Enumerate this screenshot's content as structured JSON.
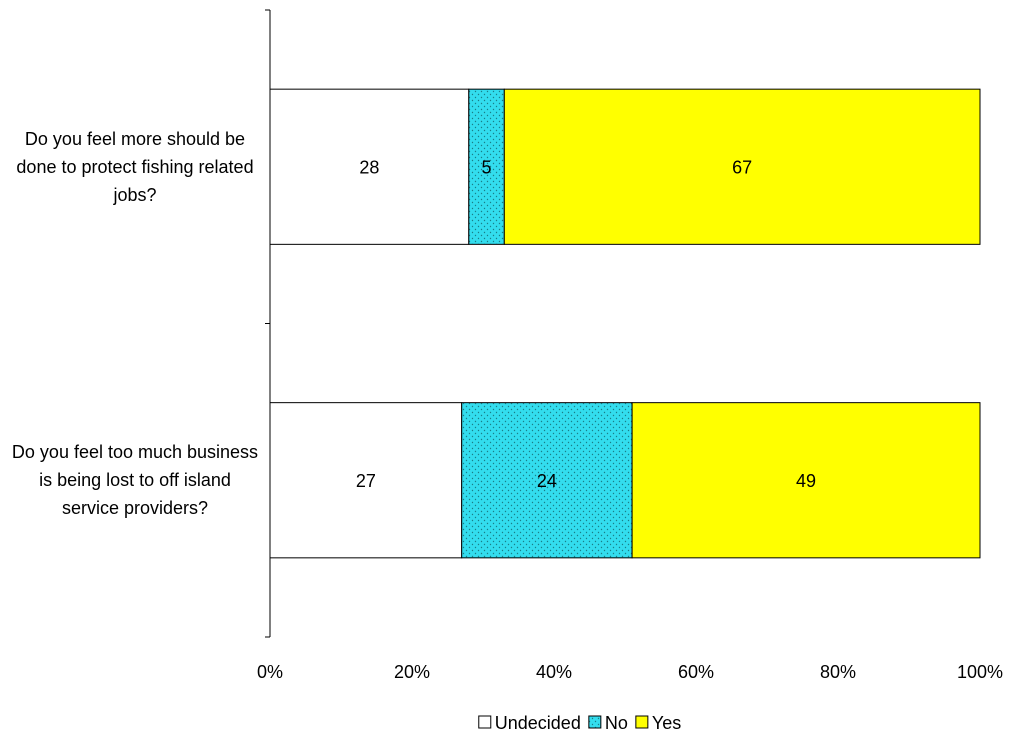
{
  "chart_data": {
    "type": "stacked_barh",
    "categories": [
      "Do you feel more should be done to protect fishing related jobs?",
      "Do you feel too much business is being lost to off island service providers?"
    ],
    "series": [
      {
        "name": "Undecided",
        "color": "#ffffff",
        "values": [
          28,
          27
        ]
      },
      {
        "name": "No",
        "color": "#33ddee",
        "values": [
          5,
          24
        ]
      },
      {
        "name": "Yes",
        "color": "#ffff00",
        "values": [
          67,
          49
        ]
      }
    ],
    "xlim": [
      0,
      100
    ],
    "xticks": [
      {
        "value": 0,
        "label": "0%"
      },
      {
        "value": 20,
        "label": "20%"
      },
      {
        "value": 40,
        "label": "40%"
      },
      {
        "value": 60,
        "label": "60%"
      },
      {
        "value": 80,
        "label": "80%"
      },
      {
        "value": 100,
        "label": "100%"
      }
    ],
    "legend": "bottom"
  }
}
